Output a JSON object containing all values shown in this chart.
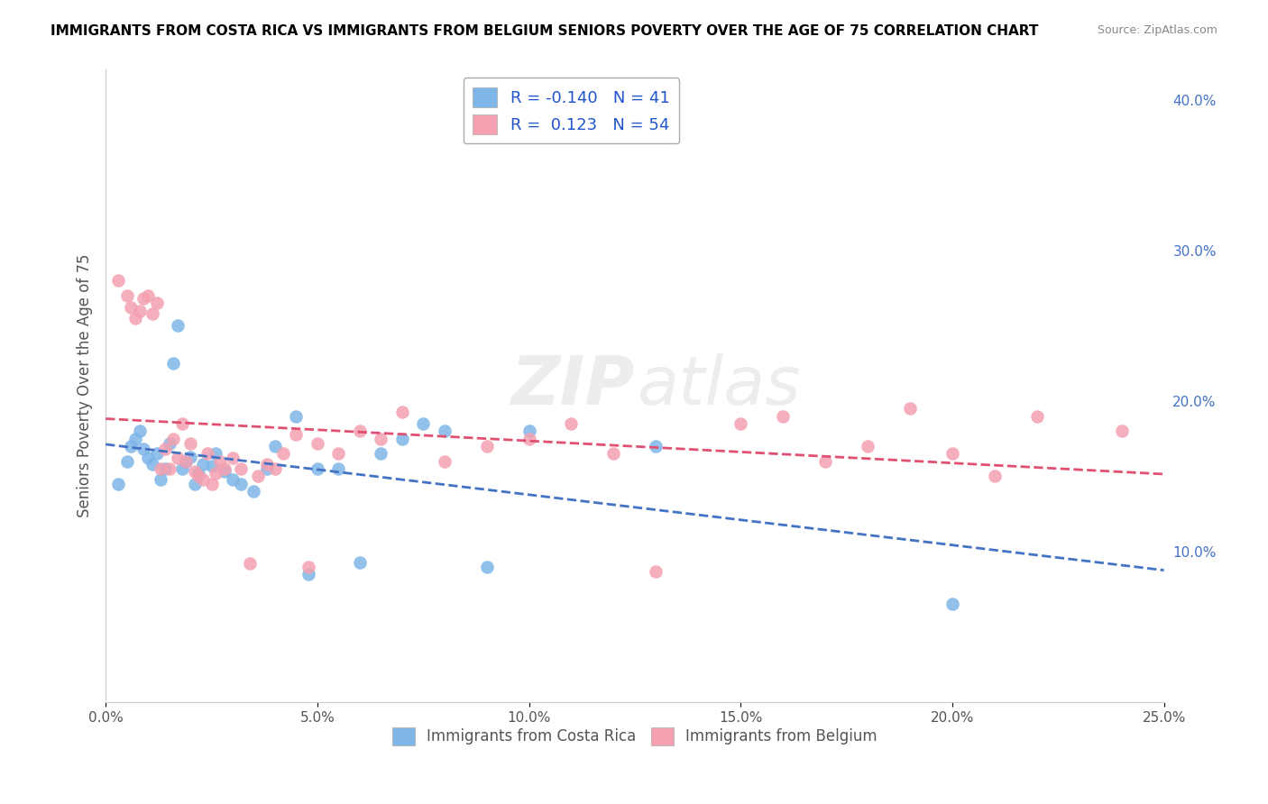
{
  "title": "IMMIGRANTS FROM COSTA RICA VS IMMIGRANTS FROM BELGIUM SENIORS POVERTY OVER THE AGE OF 75 CORRELATION CHART",
  "source": "Source: ZipAtlas.com",
  "ylabel": "Seniors Poverty Over the Age of 75",
  "xlim": [
    0.0,
    0.25
  ],
  "ylim": [
    0.0,
    0.42
  ],
  "xticks": [
    0.0,
    0.05,
    0.1,
    0.15,
    0.2,
    0.25
  ],
  "yticks_right": [
    0.1,
    0.2,
    0.3,
    0.4
  ],
  "ytick_labels_right": [
    "10.0%",
    "20.0%",
    "30.0%",
    "40.0%"
  ],
  "xtick_labels": [
    "0.0%",
    "5.0%",
    "10.0%",
    "15.0%",
    "20.0%",
    "25.0%"
  ],
  "watermark_zip": "ZIP",
  "watermark_atlas": "atlas",
  "legend_r1": "-0.140",
  "legend_n1": "41",
  "legend_r2": "0.123",
  "legend_n2": "54",
  "color_cr": "#7EB6E8",
  "color_be": "#F4A0B0",
  "line_color_cr": "#4472C4",
  "line_color_be": "#E05070",
  "costa_rica_x": [
    0.005,
    0.007,
    0.003,
    0.008,
    0.012,
    0.014,
    0.006,
    0.009,
    0.01,
    0.011,
    0.015,
    0.013,
    0.018,
    0.02,
    0.022,
    0.025,
    0.028,
    0.03,
    0.017,
    0.016,
    0.019,
    0.021,
    0.023,
    0.026,
    0.032,
    0.035,
    0.038,
    0.04,
    0.045,
    0.048,
    0.05,
    0.055,
    0.06,
    0.065,
    0.07,
    0.075,
    0.08,
    0.09,
    0.1,
    0.13,
    0.2
  ],
  "costa_rica_y": [
    0.16,
    0.175,
    0.145,
    0.18,
    0.165,
    0.155,
    0.17,
    0.168,
    0.162,
    0.158,
    0.172,
    0.148,
    0.155,
    0.163,
    0.152,
    0.157,
    0.153,
    0.148,
    0.25,
    0.225,
    0.16,
    0.145,
    0.158,
    0.165,
    0.145,
    0.14,
    0.155,
    0.17,
    0.19,
    0.085,
    0.155,
    0.155,
    0.093,
    0.165,
    0.175,
    0.185,
    0.18,
    0.09,
    0.18,
    0.17,
    0.065
  ],
  "belgium_x": [
    0.003,
    0.005,
    0.006,
    0.007,
    0.008,
    0.009,
    0.01,
    0.011,
    0.012,
    0.013,
    0.014,
    0.015,
    0.016,
    0.017,
    0.018,
    0.019,
    0.02,
    0.021,
    0.022,
    0.023,
    0.024,
    0.025,
    0.026,
    0.027,
    0.028,
    0.03,
    0.032,
    0.034,
    0.036,
    0.038,
    0.04,
    0.042,
    0.045,
    0.048,
    0.05,
    0.055,
    0.06,
    0.065,
    0.07,
    0.08,
    0.09,
    0.1,
    0.11,
    0.12,
    0.13,
    0.15,
    0.16,
    0.17,
    0.18,
    0.19,
    0.2,
    0.21,
    0.22,
    0.24
  ],
  "belgium_y": [
    0.28,
    0.27,
    0.262,
    0.255,
    0.26,
    0.268,
    0.27,
    0.258,
    0.265,
    0.155,
    0.168,
    0.155,
    0.175,
    0.162,
    0.185,
    0.16,
    0.172,
    0.153,
    0.15,
    0.148,
    0.165,
    0.145,
    0.152,
    0.16,
    0.155,
    0.162,
    0.155,
    0.092,
    0.15,
    0.158,
    0.155,
    0.165,
    0.178,
    0.09,
    0.172,
    0.165,
    0.18,
    0.175,
    0.193,
    0.16,
    0.17,
    0.175,
    0.185,
    0.165,
    0.087,
    0.185,
    0.19,
    0.16,
    0.17,
    0.195,
    0.165,
    0.15,
    0.19,
    0.18
  ]
}
